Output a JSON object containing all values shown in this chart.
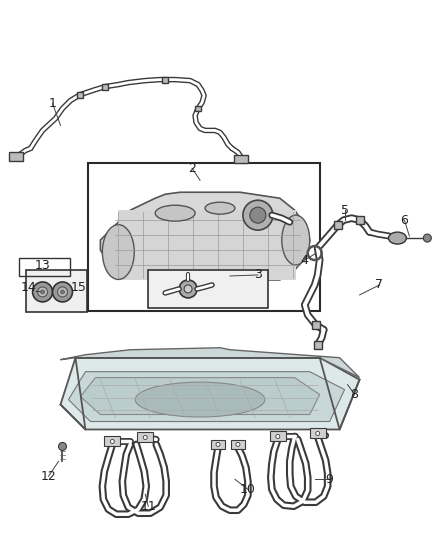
{
  "bg_color": "#ffffff",
  "line_color": "#3a3a3a",
  "fill_light": "#e8e8e8",
  "fill_med": "#cccccc",
  "fill_dark": "#aaaaaa",
  "font_size": 8,
  "font_color": "#222222"
}
